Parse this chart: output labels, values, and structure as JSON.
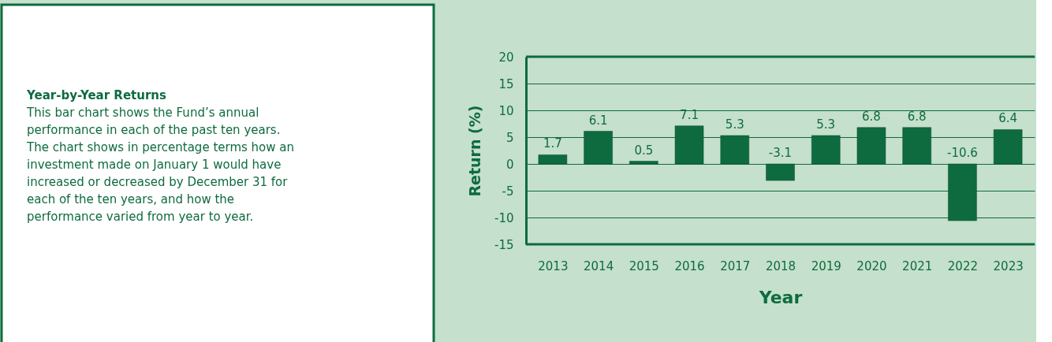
{
  "chart_data": {
    "type": "bar",
    "title": "Year-by-Year Returns",
    "subtitle": "This bar chart shows the Fund’s annual performance in each of the past ten years. The chart shows in percentage terms how an investment made on January 1 would have increased or decreased by December 31 for each of the ten years, and how the performance varied from year to year.",
    "xlabel": "Year",
    "ylabel": "Return (%)",
    "categories": [
      "2013",
      "2014",
      "2015",
      "2016",
      "2017",
      "2018",
      "2019",
      "2020",
      "2021",
      "2022",
      "2023"
    ],
    "values": [
      1.7,
      6.1,
      0.5,
      7.1,
      5.3,
      -3.1,
      5.3,
      6.8,
      6.8,
      -10.6,
      6.4
    ],
    "color": "#0e6b3f",
    "ylim": [
      -15,
      20
    ],
    "yticks": [
      -15,
      -10,
      -5,
      0,
      5,
      10,
      15,
      20
    ],
    "grid": "y",
    "data_labels": true
  }
}
